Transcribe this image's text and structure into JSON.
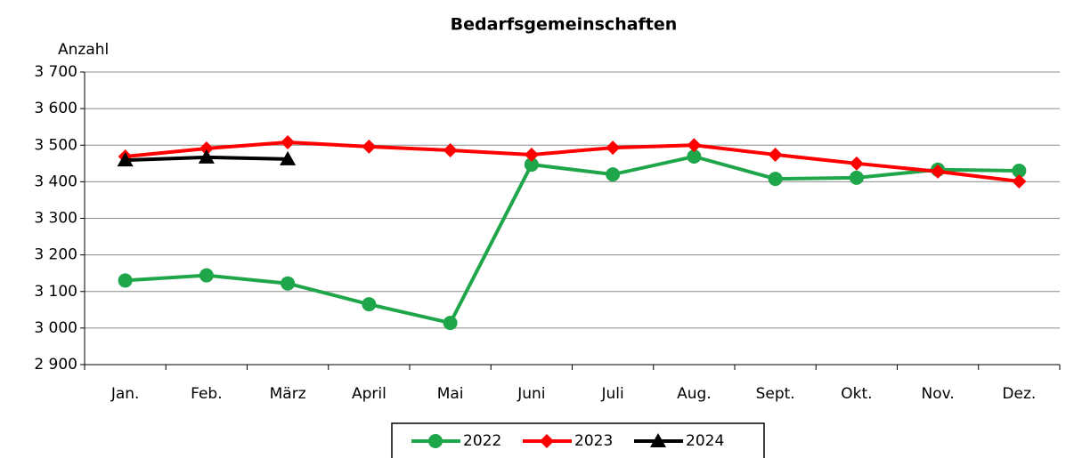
{
  "chart_data": {
    "type": "line",
    "title": "Bedarfsgemeinschaften",
    "y_label": "Anzahl",
    "categories": [
      "Jan.",
      "Feb.",
      "März",
      "April",
      "Mai",
      "Juni",
      "Juli",
      "Aug.",
      "Sept.",
      "Okt.",
      "Nov.",
      "Dez."
    ],
    "series": [
      {
        "name": "2022",
        "color": "#1fa64a",
        "marker": "circle",
        "values": [
          3130,
          3144,
          3122,
          3065,
          3014,
          3447,
          3420,
          3469,
          3408,
          3411,
          3433,
          3430
        ]
      },
      {
        "name": "2023",
        "color": "#ff0000",
        "marker": "diamond",
        "values": [
          3469,
          3491,
          3508,
          3496,
          3486,
          3474,
          3493,
          3500,
          3474,
          3450,
          3428,
          3401
        ]
      },
      {
        "name": "2024",
        "color": "#000000",
        "marker": "triangle",
        "values": [
          3459,
          3467,
          3462,
          null,
          null,
          null,
          null,
          null,
          null,
          null,
          null,
          null
        ]
      }
    ],
    "ylim": [
      2900,
      3700
    ],
    "yticks": [
      {
        "value": 2900,
        "label": "2 900"
      },
      {
        "value": 3000,
        "label": "3 000"
      },
      {
        "value": 3100,
        "label": "3 100"
      },
      {
        "value": 3200,
        "label": "3 200"
      },
      {
        "value": 3300,
        "label": "3 300"
      },
      {
        "value": 3400,
        "label": "3 400"
      },
      {
        "value": 3500,
        "label": "3 500"
      },
      {
        "value": 3600,
        "label": "3 600"
      },
      {
        "value": 3700,
        "label": "3 700"
      }
    ],
    "grid": true,
    "legend": "bottom"
  }
}
